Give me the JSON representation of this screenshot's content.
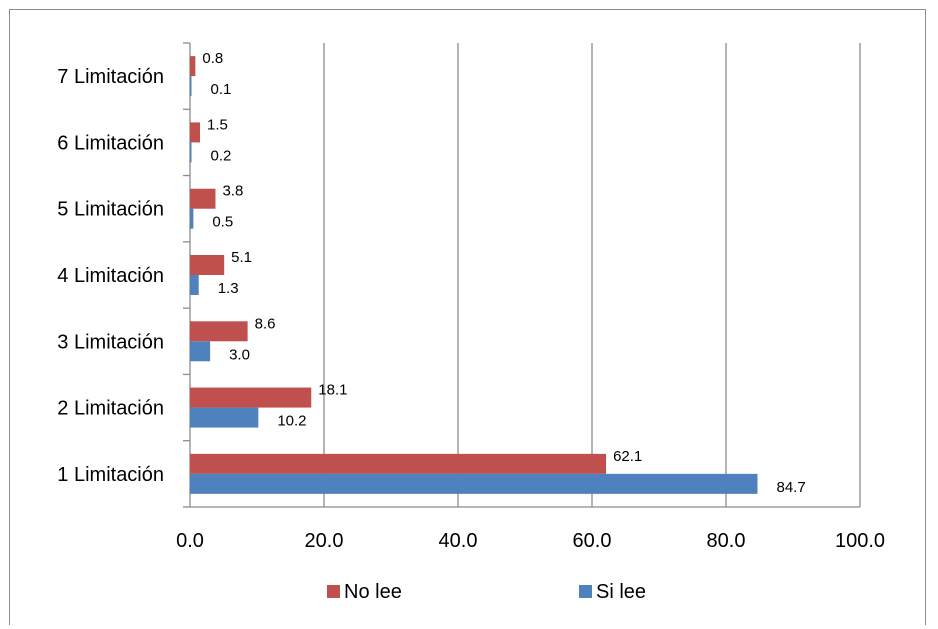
{
  "chart_data": {
    "type": "bar",
    "orientation": "horizontal",
    "categories": [
      "1 Limitación",
      "2 Limitación",
      "3 Limitación",
      "4 Limitación",
      "5 Limitación",
      "6 Limitación",
      "7 Limitación"
    ],
    "series": [
      {
        "name": "No  lee",
        "color": "#c0504d",
        "values": [
          62.1,
          18.1,
          8.6,
          5.1,
          3.8,
          1.5,
          0.8
        ],
        "labels": [
          "62.1",
          "18.1",
          "8.6",
          "5.1",
          "3.8",
          "1.5",
          "0.8"
        ]
      },
      {
        "name": "Si lee",
        "color": "#4f81bd",
        "values": [
          84.7,
          10.2,
          3.0,
          1.3,
          0.5,
          0.2,
          0.1
        ],
        "labels": [
          "84.7",
          "10.2",
          "3.0",
          "1.3",
          "0.5",
          "0.2",
          "0.1"
        ]
      }
    ],
    "xlim": [
      0,
      100
    ],
    "xticks": [
      0,
      20,
      40,
      60,
      80,
      100
    ],
    "xtick_labels": [
      "0.0",
      "20.0",
      "40.0",
      "60.0",
      "80.0",
      "100.0"
    ],
    "grid": "vertical",
    "legend_position": "bottom",
    "title": "",
    "xlabel": "",
    "ylabel": ""
  }
}
